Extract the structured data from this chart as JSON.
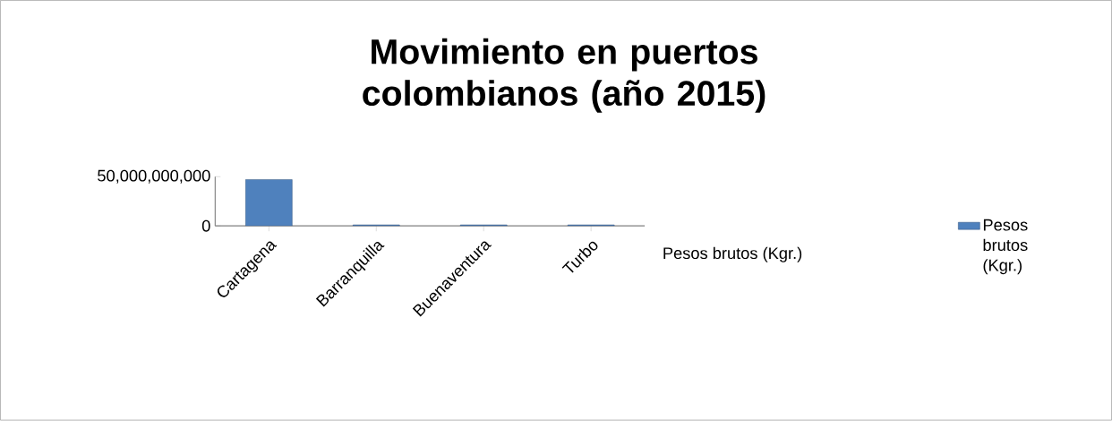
{
  "chart_data": {
    "type": "bar",
    "title": "Movimiento en puertos colombianos (año 2015)",
    "categories": [
      "Cartagena",
      "Barranquilla",
      "Buenaventura",
      "Turbo"
    ],
    "series": [
      {
        "name": "Pesos brutos (Kgr.)",
        "color": "#4f81bd",
        "values": [
          47000000000,
          1000000000,
          1000000000,
          1000000000
        ]
      }
    ],
    "ylim": [
      0,
      50000000000
    ],
    "yticks": [
      0,
      {
        "value": 50000000000,
        "label": "50,000,000,000"
      }
    ],
    "legend": "right"
  }
}
